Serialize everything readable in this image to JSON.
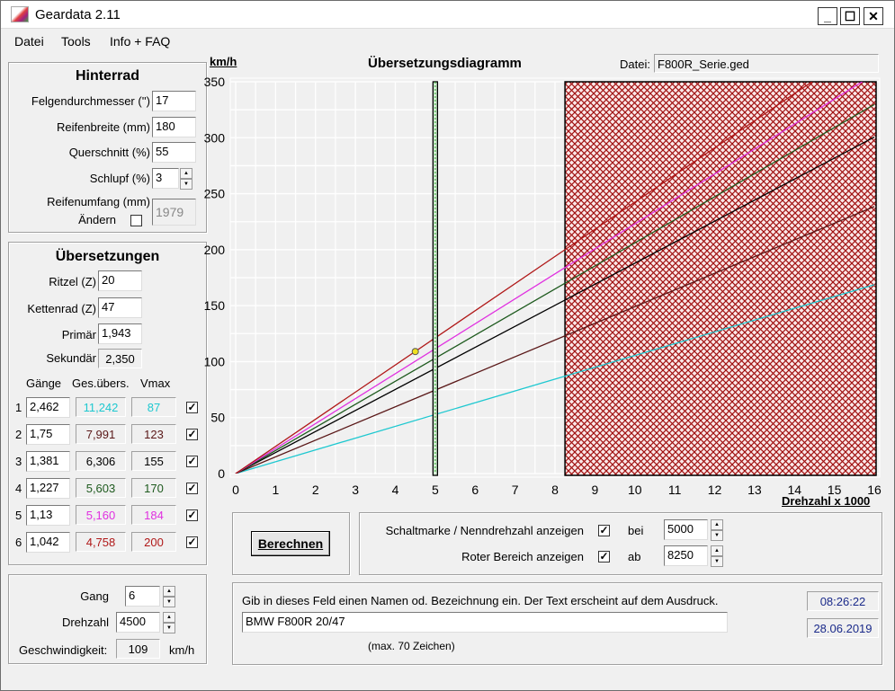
{
  "window": {
    "title": "Geardata 2.11",
    "minimize": "_",
    "maximize": "☐",
    "close": "✕"
  },
  "menu": [
    "Datei",
    "Tools",
    "Info + FAQ"
  ],
  "hinterrad": {
    "title": "Hinterrad",
    "felge_label": "Felgendurchmesser ('')",
    "felge": "17",
    "breite_label": "Reifenbreite (mm)",
    "breite": "180",
    "quer_label": "Querschnitt (%)",
    "quer": "55",
    "schlupf_label": "Schlupf (%)",
    "schlupf": "3",
    "umfang_label": "Reifenumfang (mm)",
    "aendern_label": "Ändern",
    "aendern_checked": false,
    "umfang": "1979"
  },
  "uebersetzungen": {
    "title": "Übersetzungen",
    "ritzel_label": "Ritzel (Z)",
    "ritzel": "20",
    "kettenrad_label": "Kettenrad (Z)",
    "kettenrad": "47",
    "primaer_label": "Primär",
    "primaer": "1,943",
    "sekundaer_label": "Sekundär",
    "sekundaer": "2,350",
    "col_gaenge": "Gänge",
    "col_ges": "Ges.übers.",
    "col_vmax": "Vmax",
    "gears": [
      {
        "n": "1",
        "ratio": "2,462",
        "total": "11,242",
        "vmax": "87",
        "color": "#1ec8d0",
        "checked": true
      },
      {
        "n": "2",
        "ratio": "1,75",
        "total": "7,991",
        "vmax": "123",
        "color": "#5a1818",
        "checked": true
      },
      {
        "n": "3",
        "ratio": "1,381",
        "total": "6,306",
        "vmax": "155",
        "color": "#000000",
        "checked": true
      },
      {
        "n": "4",
        "ratio": "1,227",
        "total": "5,603",
        "vmax": "170",
        "color": "#1e5a1e",
        "checked": true
      },
      {
        "n": "5",
        "ratio": "1,13",
        "total": "5,160",
        "vmax": "184",
        "color": "#e030e0",
        "checked": true
      },
      {
        "n": "6",
        "ratio": "1,042",
        "total": "4,758",
        "vmax": "200",
        "color": "#b01818",
        "checked": true
      }
    ]
  },
  "calc": {
    "gang_label": "Gang",
    "gang": "6",
    "drehzahl_label": "Drehzahl",
    "drehzahl": "4500",
    "speed_label": "Geschwindigkeit:",
    "speed": "109",
    "unit": "km/h"
  },
  "chart_header": {
    "datei_label": "Datei:",
    "datei": "F800R_Serie.ged"
  },
  "chart_data": {
    "type": "line",
    "title": "Übersetzungsdiagramm",
    "ylabel": "km/h",
    "xlabel": "Drehzahl x 1000",
    "xlim": [
      0,
      16
    ],
    "ylim": [
      0,
      350
    ],
    "xticks": [
      0,
      1,
      2,
      3,
      4,
      5,
      6,
      7,
      8,
      9,
      10,
      11,
      12,
      13,
      14,
      15,
      16
    ],
    "yticks": [
      0,
      50,
      100,
      150,
      200,
      250,
      300,
      350
    ],
    "grid": true,
    "series": [
      {
        "gear": "1",
        "color": "#1ec8d0",
        "points": [
          [
            0,
            0
          ],
          [
            8.25,
            87
          ],
          [
            16,
            168.7
          ]
        ]
      },
      {
        "gear": "2",
        "color": "#5a1818",
        "points": [
          [
            0,
            0
          ],
          [
            8.25,
            123
          ],
          [
            16,
            238.5
          ]
        ]
      },
      {
        "gear": "3",
        "color": "#000000",
        "points": [
          [
            0,
            0
          ],
          [
            8.25,
            155
          ],
          [
            16,
            300.6
          ]
        ]
      },
      {
        "gear": "4",
        "color": "#1e5a1e",
        "points": [
          [
            0,
            0
          ],
          [
            8.25,
            170
          ],
          [
            16,
            329.7
          ]
        ]
      },
      {
        "gear": "5",
        "color": "#e030e0",
        "points": [
          [
            0,
            0
          ],
          [
            8.25,
            184
          ],
          [
            16,
            356.8
          ]
        ]
      },
      {
        "gear": "6",
        "color": "#b01818",
        "points": [
          [
            0,
            0
          ],
          [
            8.25,
            200
          ],
          [
            16,
            387.9
          ]
        ]
      }
    ],
    "shift_mark": 5,
    "red_zone_from": 8.25,
    "operating_point": {
      "x": 4.5,
      "y": 109,
      "color": "#f0e020"
    }
  },
  "options": {
    "berechnen": "Berechnen",
    "schalt_label": "Schaltmarke / Nenndrehzahl anzeigen",
    "schalt_checked": true,
    "bei": "bei",
    "schalt_value": "5000",
    "rot_label": "Roter Bereich anzeigen",
    "rot_checked": true,
    "ab": "ab",
    "rot_value": "8250"
  },
  "note": {
    "hint": "Gib in dieses Feld einen Namen od. Bezeichnung ein. Der Text erscheint auf dem Ausdruck.",
    "value": "BMW F800R 20/47",
    "max": "(max. 70 Zeichen)",
    "time": "08:26:22",
    "date": "28.06.2019"
  }
}
